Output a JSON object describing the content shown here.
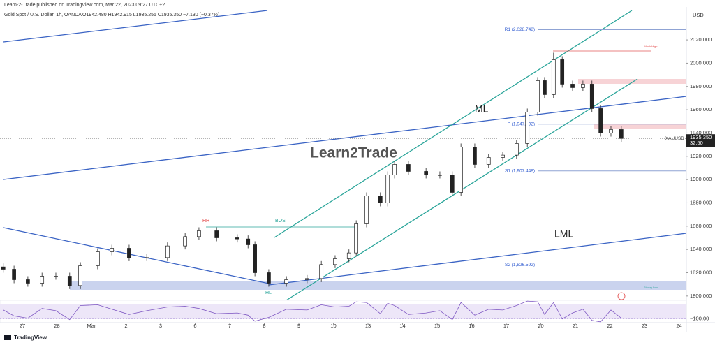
{
  "header": {
    "publisher": "Learn-2-Trade published on TradingView.com, Mar 22, 2023 09:27 UTC+2",
    "symbol": "Gold Spot / U.S. Dollar, 1h, OANDA",
    "ohlc": "O1942.480  H1942.915  L1935.255  C1935.350  −7.130 (−0.37%)"
  },
  "chart_data": {
    "type": "candlestick",
    "currency": "USD",
    "watermark": "Learn2Trade",
    "annotations": {
      "hh": "HH",
      "bos": "BOS",
      "hl": "HL",
      "ml": "ML",
      "lml": "LML",
      "weak_high": "Weak High",
      "strong_low": "Strong Low"
    },
    "x": [
      -0.55,
      -0.24,
      0.16,
      0.57,
      0.97,
      1.37,
      1.68,
      2.18,
      2.59,
      3.09,
      3.6,
      4.2,
      4.71,
      5.11,
      5.62,
      6.22,
      6.53,
      6.73,
      7.13,
      7.64,
      8.24,
      8.65,
      9.05,
      9.45,
      9.66,
      9.96,
      10.36,
      10.57,
      10.77,
      11.17,
      11.68,
      12.08,
      12.44,
      12.69,
      13.09,
      13.49,
      13.9,
      14.3,
      14.61,
      14.91,
      15.11,
      15.37,
      15.62,
      15.92,
      16.22,
      16.48,
      16.73,
      17.03,
      17.33
    ],
    "open": [
      1825,
      1823,
      1814,
      1811,
      1817,
      1817,
      1809,
      1826,
      1838,
      1841,
      1833,
      1833,
      1843,
      1851,
      1856,
      1850,
      1849,
      1844,
      1820,
      1811,
      1814,
      1815,
      1827,
      1832,
      1837,
      1862,
      1886,
      1880,
      1904,
      1913,
      1907,
      1904,
      1904,
      1889,
      1928,
      1913,
      1919,
      1921,
      1931,
      1958,
      1985,
      1973,
      2003,
      1982,
      1979,
      1982,
      1961,
      1940,
      1943
    ],
    "high": [
      1828,
      1826,
      1817,
      1820,
      1820,
      1820,
      1829,
      1841,
      1844,
      1844,
      1836,
      1846,
      1854,
      1859,
      1859,
      1853,
      1852,
      1847,
      1823,
      1817,
      1818,
      1830,
      1835,
      1840,
      1865,
      1889,
      1889,
      1907,
      1916,
      1916,
      1910,
      1907,
      1907,
      1931,
      1931,
      1922,
      1924,
      1934,
      1961,
      1988,
      1988,
      2009,
      2006,
      1985,
      1985,
      1985,
      1964,
      1946,
      1946
    ],
    "low": [
      1820,
      1811,
      1808,
      1808,
      1814,
      1806,
      1806,
      1823,
      1835,
      1830,
      1830,
      1830,
      1840,
      1848,
      1847,
      1846,
      1841,
      1817,
      1808,
      1808,
      1811,
      1812,
      1824,
      1829,
      1834,
      1859,
      1877,
      1877,
      1901,
      1904,
      1901,
      1901,
      1886,
      1886,
      1910,
      1910,
      1916,
      1918,
      1928,
      1955,
      1970,
      1970,
      1979,
      1976,
      1976,
      1958,
      1937,
      1937,
      1932
    ],
    "close": [
      1823,
      1814,
      1811,
      1817,
      1817,
      1809,
      1826,
      1838,
      1841,
      1833,
      1833,
      1843,
      1851,
      1856,
      1850,
      1849,
      1844,
      1820,
      1811,
      1814,
      1815,
      1827,
      1832,
      1837,
      1862,
      1886,
      1880,
      1904,
      1913,
      1907,
      1904,
      1904,
      1889,
      1928,
      1913,
      1919,
      1921,
      1931,
      1958,
      1985,
      1973,
      2003,
      1982,
      1979,
      1982,
      1961,
      1940,
      1943,
      1935.35
    ],
    "xlim": [
      -0.646,
      19.212
    ],
    "xticks": [
      {
        "value": 0,
        "label": "27"
      },
      {
        "value": 1,
        "label": "28"
      },
      {
        "value": 2,
        "label": "Mar"
      },
      {
        "value": 3,
        "label": "2"
      },
      {
        "value": 4,
        "label": "3"
      },
      {
        "value": 5,
        "label": "6"
      },
      {
        "value": 6,
        "label": "7"
      },
      {
        "value": 7,
        "label": "8"
      },
      {
        "value": 8,
        "label": "9"
      },
      {
        "value": 9,
        "label": "10"
      },
      {
        "value": 10,
        "label": "13"
      },
      {
        "value": 11,
        "label": "14"
      },
      {
        "value": 12,
        "label": "15"
      },
      {
        "value": 13,
        "label": "16"
      },
      {
        "value": 14,
        "label": "17"
      },
      {
        "value": 15,
        "label": "20"
      },
      {
        "value": 16,
        "label": "21"
      },
      {
        "value": 17,
        "label": "22"
      },
      {
        "value": 18,
        "label": "23"
      },
      {
        "value": 19,
        "label": "24"
      }
    ],
    "ylim": [
      1797.5,
      2048.25
    ],
    "yticks": [
      {
        "value": 1800,
        "label": "1800.000"
      },
      {
        "value": 1820,
        "label": "1820.000"
      },
      {
        "value": 1840,
        "label": "1840.000"
      },
      {
        "value": 1860,
        "label": "1860.000"
      },
      {
        "value": 1880,
        "label": "1880.000"
      },
      {
        "value": 1900,
        "label": "1900.000"
      },
      {
        "value": 1920,
        "label": "1920.000"
      },
      {
        "value": 1940,
        "label": "1940.000"
      },
      {
        "value": 1960,
        "label": "1960.000"
      },
      {
        "value": 1980,
        "label": "1980.000"
      },
      {
        "value": 2000,
        "label": "2000.000"
      },
      {
        "value": 2020,
        "label": "2020.000"
      }
    ],
    "levels": [
      {
        "label": "R1 (2,028.748)",
        "value": 2028.748
      },
      {
        "label": "P (1,947.592)",
        "value": 1947.592
      },
      {
        "label": "S1 (1,907.448)",
        "value": 1907.448
      },
      {
        "label": "S2 (1,826.592)",
        "value": 1826.592
      }
    ],
    "last_price": {
      "value": 1935.35,
      "label": "1935.350"
    },
    "symbol_tag": "XAUUSD",
    "countdown": "32:50",
    "oscillator": {
      "values": [
        20,
        -60,
        -90,
        40,
        10,
        -110,
        80,
        90,
        30,
        -40,
        10,
        60,
        70,
        40,
        -30,
        -20,
        -50,
        -130,
        -80,
        30,
        20,
        90,
        60,
        70,
        130,
        120,
        -30,
        110,
        80,
        -40,
        -20,
        10,
        -110,
        120,
        -50,
        30,
        20,
        80,
        140,
        130,
        -40,
        120,
        -100,
        -20,
        30,
        -120,
        -140,
        20,
        -90
      ],
      "ylim": [
        -150,
        150
      ],
      "yticks": [
        {
          "value": -100,
          "label": "−100.00"
        }
      ]
    }
  },
  "footer": {
    "brand": "TradingView"
  }
}
